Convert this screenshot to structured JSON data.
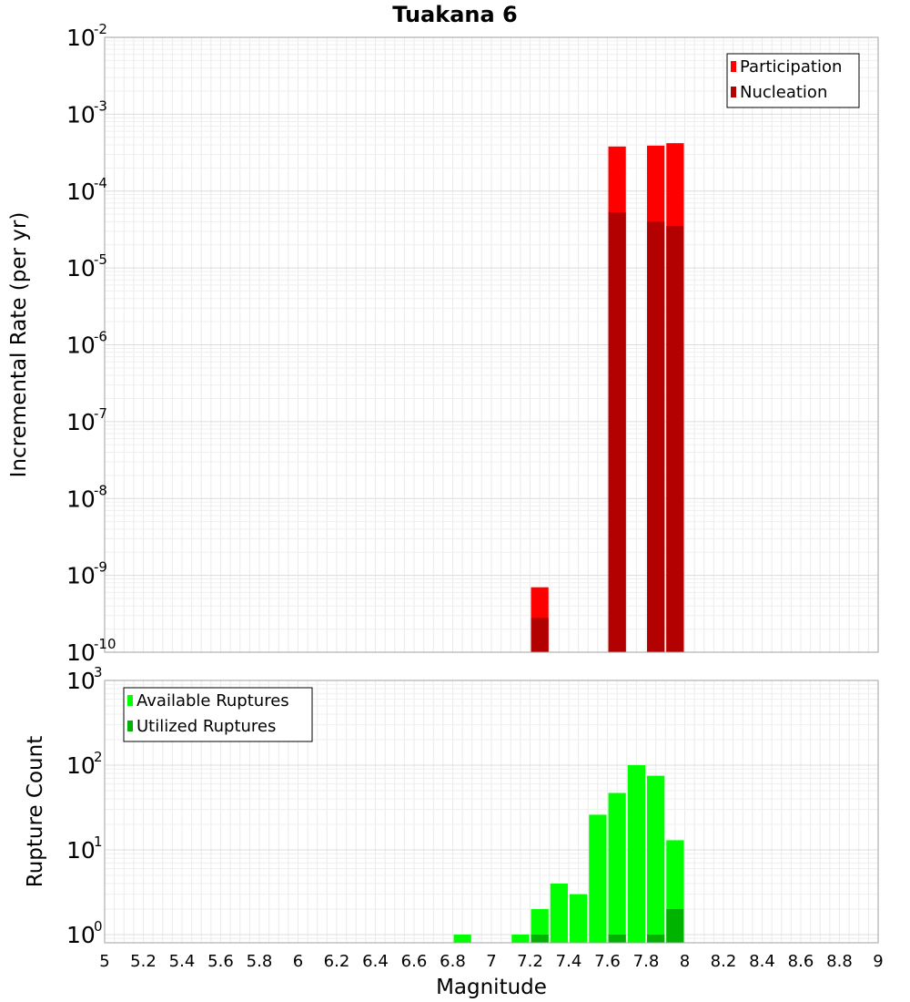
{
  "chart_data": {
    "type": "bar",
    "title": "Tuakana 6",
    "xlabel": "Magnitude",
    "xlim": [
      5,
      9
    ],
    "xticks": [
      "5",
      "5.2",
      "5.4",
      "5.6",
      "5.8",
      "6",
      "6.2",
      "6.4",
      "6.6",
      "6.8",
      "7",
      "7.2",
      "7.4",
      "7.6",
      "7.8",
      "8",
      "8.2",
      "8.4",
      "8.6",
      "8.8",
      "9"
    ],
    "bin_width": 0.1,
    "grid": true,
    "panels": [
      {
        "id": "rate",
        "ylabel": "Incremental Rate (per yr)",
        "yscale": "log",
        "ylim": [
          1e-10,
          0.01
        ],
        "yticks": [
          {
            "base": "10",
            "exp": "-10",
            "value": 1e-10
          },
          {
            "base": "10",
            "exp": "-9",
            "value": 1e-09
          },
          {
            "base": "10",
            "exp": "-8",
            "value": 1e-08
          },
          {
            "base": "10",
            "exp": "-7",
            "value": 1e-07
          },
          {
            "base": "10",
            "exp": "-6",
            "value": 1e-06
          },
          {
            "base": "10",
            "exp": "-5",
            "value": 1e-05
          },
          {
            "base": "10",
            "exp": "-4",
            "value": 0.0001
          },
          {
            "base": "10",
            "exp": "-3",
            "value": 0.001
          },
          {
            "base": "10",
            "exp": "-2",
            "value": 0.01
          }
        ],
        "legend_position": "top-right",
        "series": [
          {
            "name": "Participation",
            "color": "#ff0000",
            "points": [
              {
                "x": 7.25,
                "y": 7e-10
              },
              {
                "x": 7.65,
                "y": 0.00038
              },
              {
                "x": 7.85,
                "y": 0.00039
              },
              {
                "x": 7.95,
                "y": 0.00042
              }
            ]
          },
          {
            "name": "Nucleation",
            "color": "#b30000",
            "points": [
              {
                "x": 7.25,
                "y": 2.8e-10
              },
              {
                "x": 7.65,
                "y": 5.3e-05
              },
              {
                "x": 7.85,
                "y": 4e-05
              },
              {
                "x": 7.95,
                "y": 3.5e-05
              }
            ]
          }
        ]
      },
      {
        "id": "count",
        "ylabel": "Rupture Count",
        "yscale": "log",
        "ylim": [
          0.8,
          1000
        ],
        "yticks": [
          {
            "base": "10",
            "exp": "0",
            "value": 1
          },
          {
            "base": "10",
            "exp": "1",
            "value": 10
          },
          {
            "base": "10",
            "exp": "2",
            "value": 100
          },
          {
            "base": "10",
            "exp": "3",
            "value": 1000
          }
        ],
        "legend_position": "top-left",
        "series": [
          {
            "name": "Available Ruptures",
            "color": "#00ff00",
            "points": [
              {
                "x": 6.85,
                "y": 1
              },
              {
                "x": 7.15,
                "y": 1
              },
              {
                "x": 7.25,
                "y": 2
              },
              {
                "x": 7.35,
                "y": 4
              },
              {
                "x": 7.45,
                "y": 3
              },
              {
                "x": 7.55,
                "y": 26
              },
              {
                "x": 7.65,
                "y": 47
              },
              {
                "x": 7.75,
                "y": 100
              },
              {
                "x": 7.85,
                "y": 75
              },
              {
                "x": 7.95,
                "y": 13
              }
            ]
          },
          {
            "name": "Utilized Ruptures",
            "color": "#00b300",
            "points": [
              {
                "x": 7.25,
                "y": 1
              },
              {
                "x": 7.65,
                "y": 1
              },
              {
                "x": 7.85,
                "y": 1
              },
              {
                "x": 7.95,
                "y": 2
              }
            ]
          }
        ]
      }
    ]
  }
}
